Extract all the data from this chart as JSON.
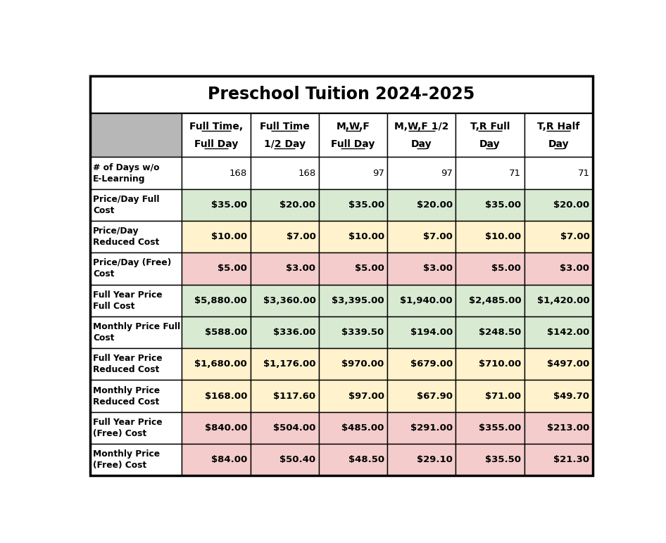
{
  "title": "Preschool Tuition 2024-2025",
  "col_headers": [
    [
      "Full Time,",
      "Full Day"
    ],
    [
      "Full Time",
      "1/2 Day"
    ],
    [
      "M,W,F",
      "Full Day"
    ],
    [
      "M,W,F 1/2",
      "Day"
    ],
    [
      "T,R Full",
      "Day"
    ],
    [
      "T,R Half",
      "Day"
    ]
  ],
  "row_labels": [
    "# of Days w/o\nE-Learning",
    "Price/Day Full\nCost",
    "Price/Day\nReduced Cost",
    "Price/Day (Free)\nCost",
    "Full Year Price\nFull Cost",
    "Monthly Price Full\nCost",
    "Full Year Price\nReduced Cost",
    "Monthly Price\nReduced Cost",
    "Full Year Price\n(Free) Cost",
    "Monthly Price\n(Free) Cost"
  ],
  "data": [
    [
      "168",
      "168",
      "97",
      "97",
      "71",
      "71"
    ],
    [
      "$35.00",
      "$20.00",
      "$35.00",
      "$20.00",
      "$35.00",
      "$20.00"
    ],
    [
      "$10.00",
      "$7.00",
      "$10.00",
      "$7.00",
      "$10.00",
      "$7.00"
    ],
    [
      "$5.00",
      "$3.00",
      "$5.00",
      "$3.00",
      "$5.00",
      "$3.00"
    ],
    [
      "$5,880.00",
      "$3,360.00",
      "$3,395.00",
      "$1,940.00",
      "$2,485.00",
      "$1,420.00"
    ],
    [
      "$588.00",
      "$336.00",
      "$339.50",
      "$194.00",
      "$248.50",
      "$142.00"
    ],
    [
      "$1,680.00",
      "$1,176.00",
      "$970.00",
      "$679.00",
      "$710.00",
      "$497.00"
    ],
    [
      "$168.00",
      "$117.60",
      "$97.00",
      "$67.90",
      "$71.00",
      "$49.70"
    ],
    [
      "$840.00",
      "$504.00",
      "$485.00",
      "$291.00",
      "$355.00",
      "$213.00"
    ],
    [
      "$84.00",
      "$50.40",
      "$48.50",
      "$29.10",
      "$35.50",
      "$21.30"
    ]
  ],
  "row_colors": [
    "#ffffff",
    "#d9ead3",
    "#fff2cc",
    "#f4cccc",
    "#d9ead3",
    "#d9ead3",
    "#fff2cc",
    "#fff2cc",
    "#f4cccc",
    "#f4cccc"
  ],
  "label_col_color": "#ffffff",
  "header_row_color": "#ffffff",
  "title_bg_color": "#ffffff",
  "gray_cell_color": "#b7b7b7",
  "border_color": "#000000",
  "outer_border_color": "#000000",
  "figsize": [
    9.46,
    7.72
  ],
  "dpi": 100
}
